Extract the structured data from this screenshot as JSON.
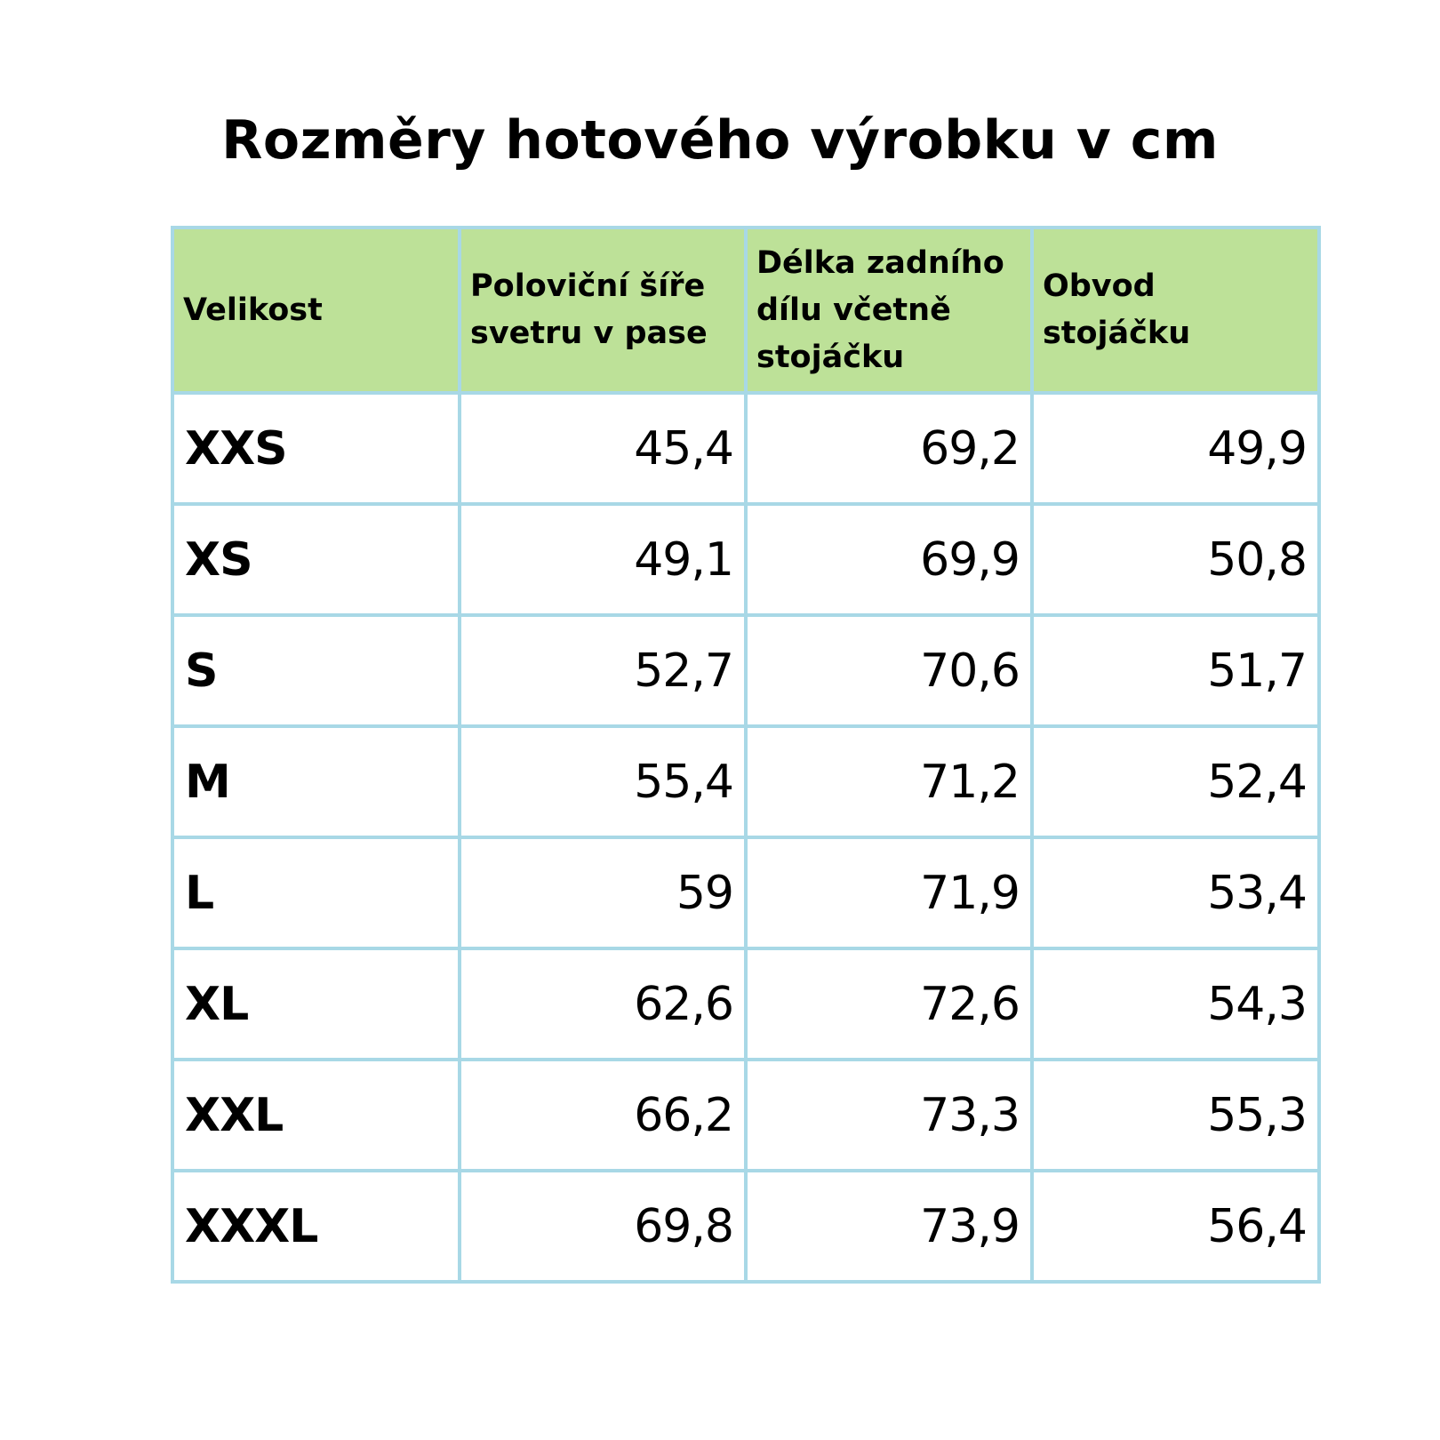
{
  "title": "Rozměry hotového výrobku v cm",
  "colors": {
    "header_background": "#bde198",
    "grid_border": "#a8d8e6",
    "text": "#000000"
  },
  "table": {
    "headers": [
      "Velikost",
      "Poloviční šíře svetru v pase",
      "Délka zadního dílu včetně stojáčku",
      "Obvod stojáčku"
    ],
    "rows": [
      [
        "XXS",
        "45,4",
        "69,2",
        "49,9"
      ],
      [
        "XS",
        "49,1",
        "69,9",
        "50,8"
      ],
      [
        "S",
        "52,7",
        "70,6",
        "51,7"
      ],
      [
        "M",
        "55,4",
        "71,2",
        "52,4"
      ],
      [
        "L",
        "59",
        "71,9",
        "53,4"
      ],
      [
        "XL",
        "62,6",
        "72,6",
        "54,3"
      ],
      [
        "XXL",
        "66,2",
        "73,3",
        "55,3"
      ],
      [
        "XXXL",
        "69,8",
        "73,9",
        "56,4"
      ]
    ]
  }
}
